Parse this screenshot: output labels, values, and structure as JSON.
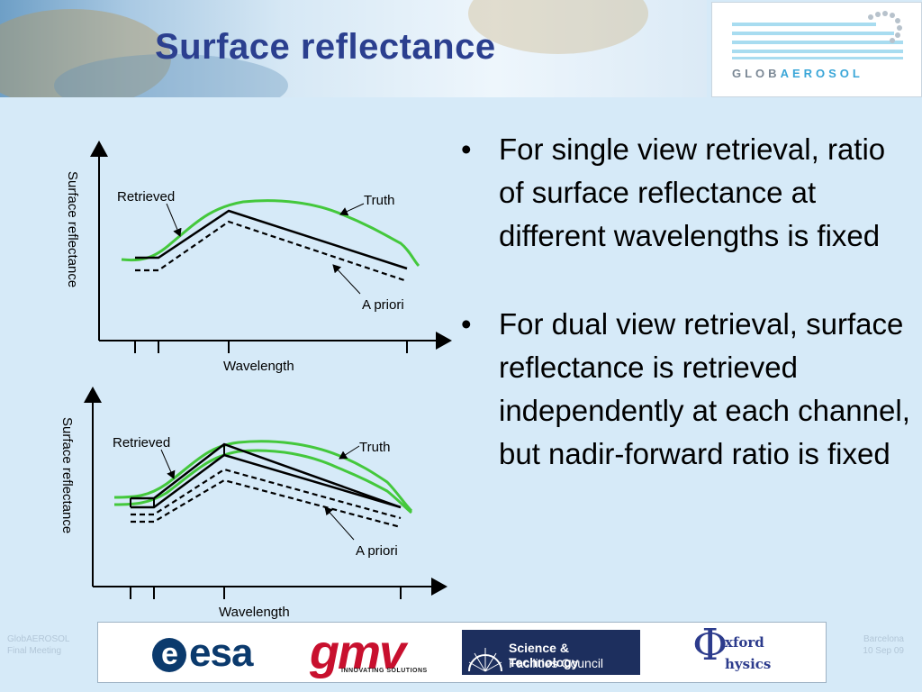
{
  "slide": {
    "title": "Surface reflectance",
    "bullets": [
      "For single view retrieval, ratio of surface reflectance at different wavelengths is fixed",
      "For dual view retrieval, surface reflectance is retrieved independently at each channel, but nadir-forward ratio is fixed"
    ],
    "bullet_symbol": "•"
  },
  "logo": {
    "prefix": "GLOB",
    "highlight": "AEROSOL"
  },
  "diagram_top": {
    "ylabel": "Surface reflectance",
    "xlabel": "Wavelength",
    "labels": {
      "retrieved": "Retrieved",
      "truth": "Truth",
      "apriori": "A priori"
    }
  },
  "diagram_bottom": {
    "ylabel": "Surface reflectance",
    "xlabel": "Wavelength",
    "labels": {
      "retrieved": "Retrieved",
      "truth": "Truth",
      "apriori": "A priori"
    }
  },
  "colors": {
    "truth": "#44c83c",
    "title": "#2b3f8f",
    "background": "#d6eaf8"
  },
  "footer": {
    "left_line1": "GlobAEROSOL",
    "left_line2": "Final Meeting",
    "right_line1": "Barcelona",
    "right_line2": "10 Sep 09",
    "logos": {
      "esa": "esa",
      "gmv": "gmv",
      "gmv_tagline": "INNOVATING SOLUTIONS",
      "stfc_line1": "Science & Technology",
      "stfc_line2": "Facilities Council",
      "oxford_line1": "xford",
      "oxford_line2": "hysics"
    }
  }
}
